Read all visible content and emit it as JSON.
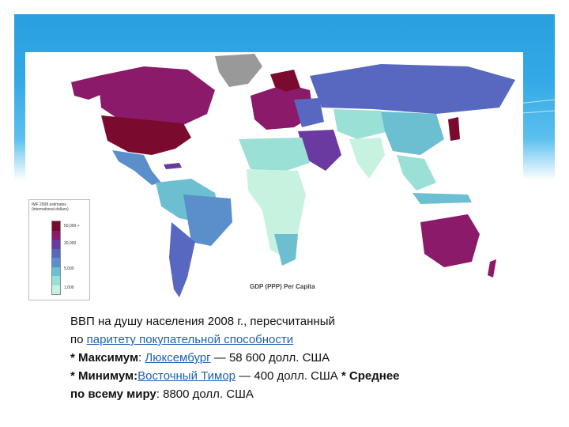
{
  "legend": {
    "title": "IMF 2008 estimates (international dollars)",
    "ticks": [
      "50,000 +",
      "30,000",
      "5,000",
      "1,000"
    ],
    "colors": [
      "#7a0a2e",
      "#8b1a6a",
      "#6a3aa0",
      "#5868c0",
      "#5a8fcc",
      "#6cbfd0",
      "#9be0d6",
      "#c8f2e0"
    ]
  },
  "map_label": "GDP (PPP) Per Capita",
  "caption": {
    "line1": "ВВП на душу населения 2008 г., пересчитанный",
    "line2_prefix": "по ",
    "line2_link": "паритету покупательной способности",
    "max_label": "* Максимум",
    "max_sep": ": ",
    "max_link": "Люксембург",
    "max_value": " — 58 600 долл. США",
    "min_label": "* Минимум:",
    "min_link": "Восточный Тимор",
    "min_value": " — 400 долл. США ",
    "avg_label_1": "* Среднее",
    "avg_label_2": "по всему миру",
    "avg_value": ": 8800 долл. США"
  }
}
